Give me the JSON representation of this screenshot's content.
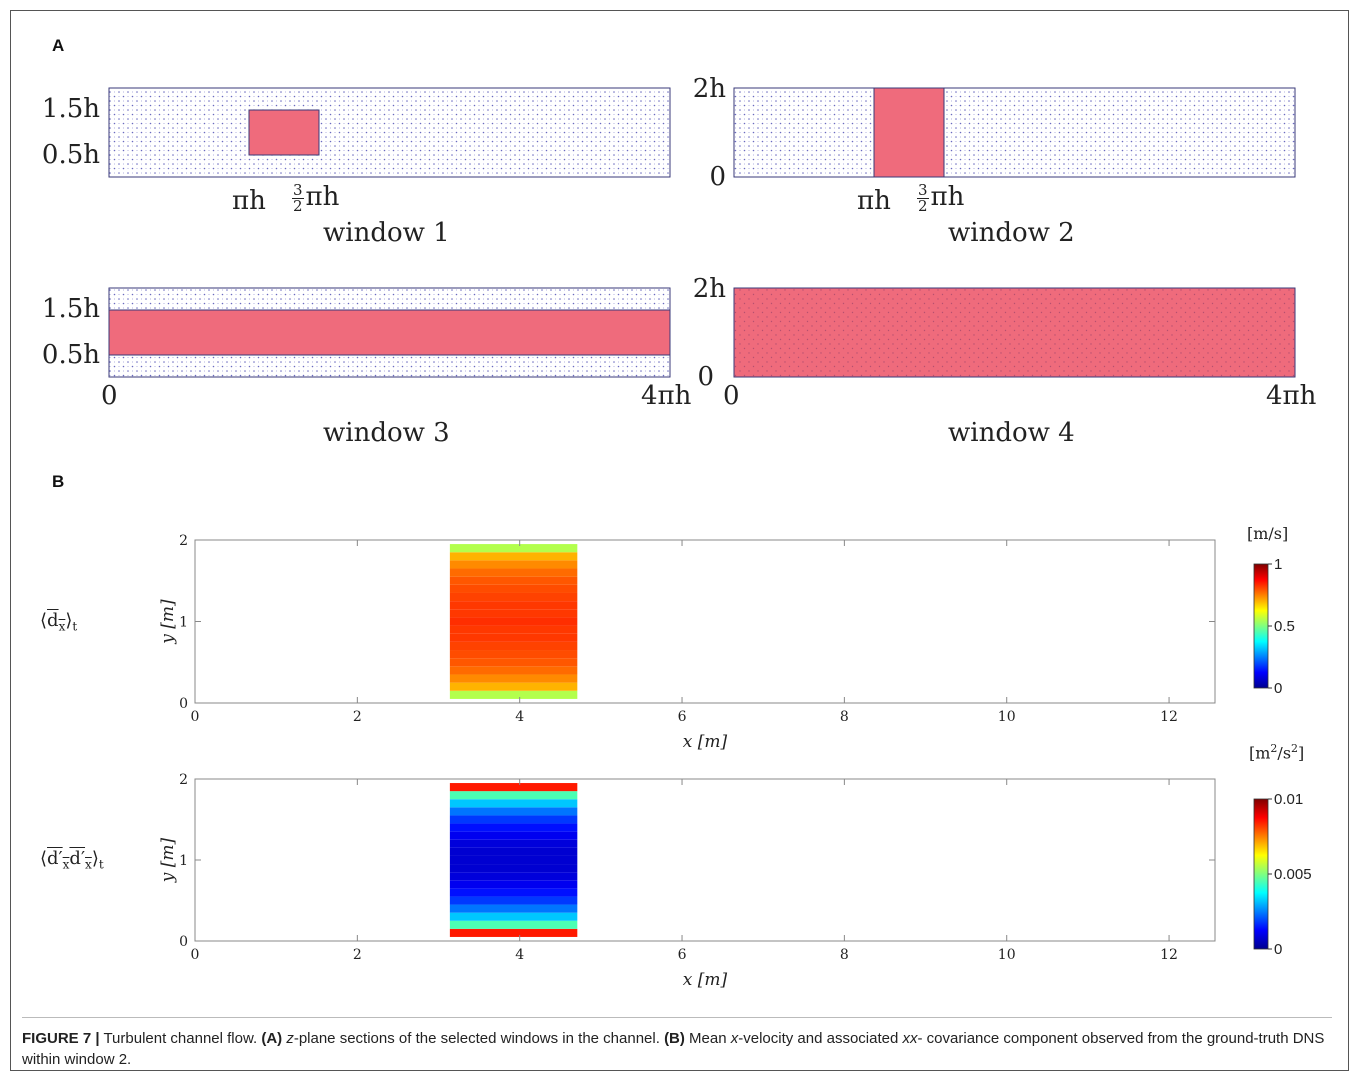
{
  "panel_a": {
    "letter": "A",
    "windows": [
      {
        "caption": "window 1",
        "y_labels": [
          "1.5h",
          "0.5h"
        ],
        "x_labels": [
          "πh",
          "πh"
        ],
        "x_frac": "3/2"
      },
      {
        "caption": "window 2",
        "y_labels": [
          "2h",
          "0"
        ],
        "x_labels": [
          "πh",
          "πh"
        ],
        "x_frac": "3/2"
      },
      {
        "caption": "window 3",
        "y_labels": [
          "1.5h",
          "0.5h"
        ],
        "x_labels": [
          "0",
          "4πh"
        ]
      },
      {
        "caption": "window 4",
        "y_labels": [
          "2h",
          "0"
        ],
        "x_labels": [
          "0",
          "4πh"
        ]
      }
    ],
    "highlight_color": "#ef6b7c",
    "grid_color": "#5a5ab0"
  },
  "panel_b": {
    "letter": "B",
    "plots": [
      {
        "row_label": "⟨d_x⟩_t",
        "colorbar_unit": "[m/s]",
        "colorbar_ticks": [
          "1",
          "0.5",
          "0"
        ]
      },
      {
        "row_label": "⟨d'_x d'_x⟩_t",
        "colorbar_unit": "[m²/s²]",
        "colorbar_ticks": [
          "0.01",
          "0.005",
          "0"
        ]
      }
    ]
  },
  "chart_data": [
    {
      "type": "heatmap",
      "xlabel": "x [m]",
      "ylabel": "y [m]",
      "xlim": [
        0,
        12.566
      ],
      "ylim": [
        0,
        2
      ],
      "x_ticks": [
        0,
        2,
        4,
        6,
        8,
        10,
        12
      ],
      "y_ticks": [
        0,
        1,
        2
      ],
      "window_x": [
        3.14,
        4.71
      ],
      "window_y": [
        0.1,
        1.9
      ],
      "colorbar_range": [
        0,
        1
      ],
      "colorbar_unit": "[m/s]",
      "profile_y": [
        0.1,
        0.2,
        0.3,
        0.4,
        0.5,
        0.6,
        0.7,
        0.8,
        0.9,
        1.0,
        1.1,
        1.2,
        1.3,
        1.4,
        1.5,
        1.6,
        1.7,
        1.8,
        1.9
      ],
      "profile_values": [
        0.55,
        0.7,
        0.74,
        0.77,
        0.79,
        0.8,
        0.81,
        0.82,
        0.82,
        0.83,
        0.82,
        0.82,
        0.81,
        0.8,
        0.79,
        0.77,
        0.74,
        0.7,
        0.55
      ]
    },
    {
      "type": "heatmap",
      "xlabel": "x [m]",
      "ylabel": "y [m]",
      "xlim": [
        0,
        12.566
      ],
      "ylim": [
        0,
        2
      ],
      "x_ticks": [
        0,
        2,
        4,
        6,
        8,
        10,
        12
      ],
      "y_ticks": [
        0,
        1,
        2
      ],
      "window_x": [
        3.14,
        4.71
      ],
      "window_y": [
        0.1,
        1.9
      ],
      "colorbar_range": [
        0,
        0.01
      ],
      "colorbar_unit": "[m²/s²]",
      "profile_y": [
        0.1,
        0.2,
        0.3,
        0.4,
        0.5,
        0.6,
        0.7,
        0.8,
        0.9,
        1.0,
        1.1,
        1.2,
        1.3,
        1.4,
        1.5,
        1.6,
        1.7,
        1.8,
        1.9
      ],
      "profile_values": [
        0.0085,
        0.0045,
        0.0032,
        0.0024,
        0.0018,
        0.0014,
        0.0011,
        0.0009,
        0.0008,
        0.0008,
        0.0008,
        0.0009,
        0.0011,
        0.0014,
        0.0018,
        0.0024,
        0.0032,
        0.0045,
        0.0085
      ]
    }
  ],
  "caption": {
    "label": "FIGURE 7 |",
    "text1": " Turbulent channel flow. ",
    "a_tag": "(A)",
    "text2a": " ",
    "z_italic": "z",
    "text2b": "-plane sections of the selected windows in the channel. ",
    "b_tag": "(B)",
    "text3a": " Mean ",
    "x_italic": "x",
    "text3b": "-velocity and associated ",
    "xx_italic": "xx",
    "text3c": "- covariance component observed from the ground-truth DNS within window 2."
  }
}
